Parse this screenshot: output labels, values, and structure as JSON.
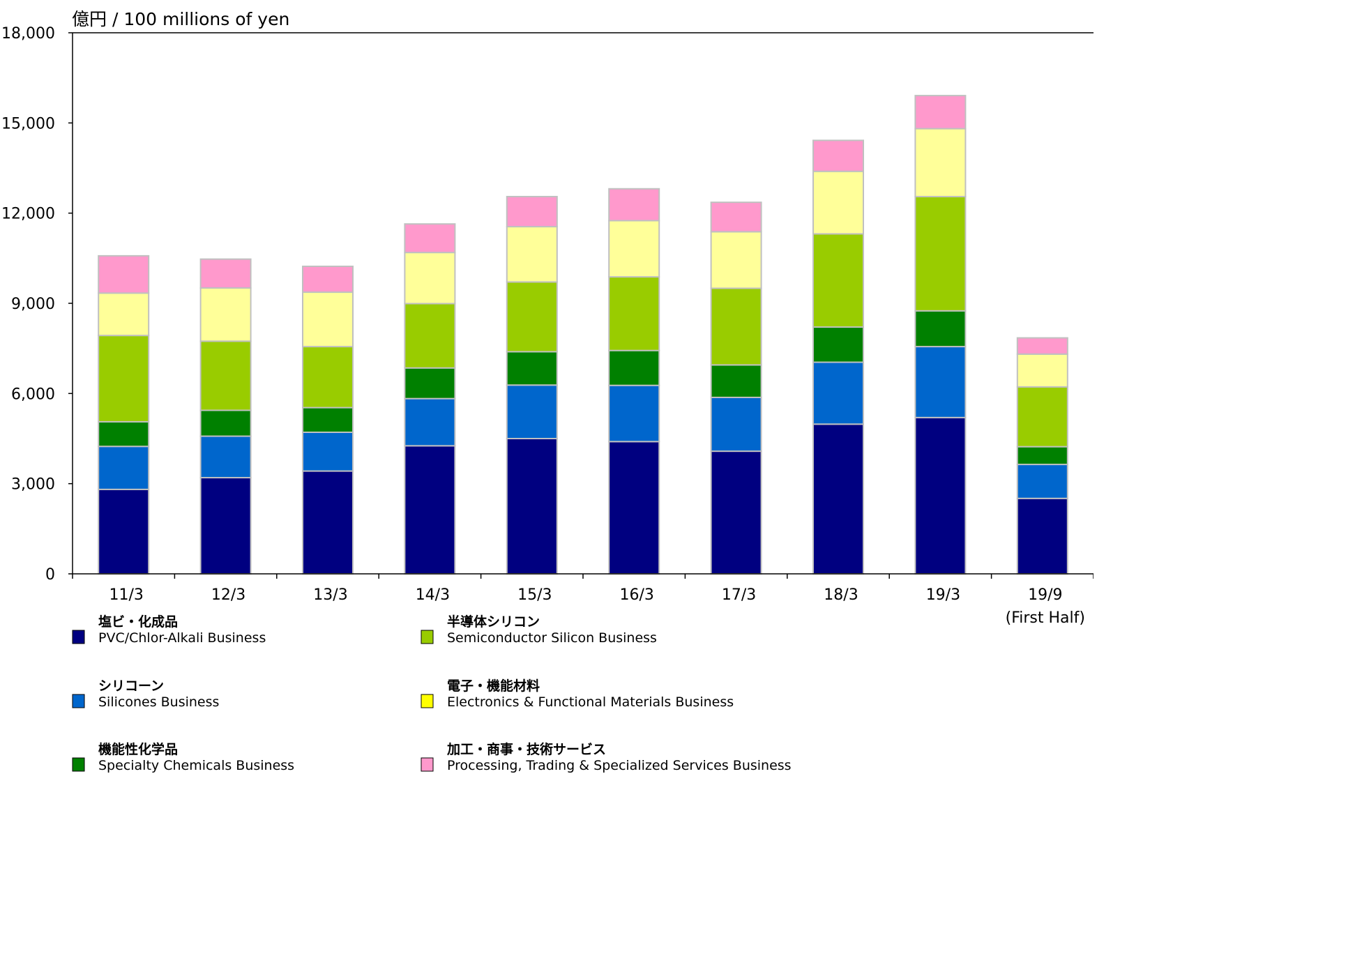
{
  "chart_data": {
    "type": "bar",
    "stacked": true,
    "unit_label": "億円 / 100 millions of yen",
    "categories": [
      "11/3",
      "12/3",
      "13/3",
      "14/3",
      "15/3",
      "16/3",
      "17/3",
      "18/3",
      "19/3",
      "19/9"
    ],
    "category_sublabels": [
      "",
      "",
      "",
      "",
      "",
      "",
      "",
      "",
      "",
      "(First Half)"
    ],
    "ylim": [
      0,
      18000
    ],
    "yticks": [
      "0",
      "3,000",
      "6,000",
      "9,000",
      "12,000",
      "15,000",
      "18,000"
    ],
    "ytick_values": [
      0,
      3000,
      6000,
      9000,
      12000,
      15000,
      18000
    ],
    "grid": false,
    "legend_position": "bottom",
    "series": [
      {
        "name_ja": "塩ビ・化成品",
        "name": "PVC/Chlor-Alkali Business",
        "color": "#000080",
        "values": [
          2810,
          3200,
          3420,
          4260,
          4500,
          4400,
          4080,
          4980,
          5200,
          2510
        ]
      },
      {
        "name_ja": "シリコーン",
        "name": "Silicones Business",
        "color": "#0066cc",
        "values": [
          1430,
          1380,
          1290,
          1570,
          1780,
          1870,
          1790,
          2060,
          2360,
          1130
        ]
      },
      {
        "name_ja": "機能性化学品",
        "name": "Specialty Chemicals Business",
        "color": "#008000",
        "values": [
          820,
          860,
          820,
          1020,
          1110,
          1160,
          1080,
          1170,
          1190,
          590
        ]
      },
      {
        "name_ja": "半導体シリコン",
        "name": "Semiconductor Silicon Business",
        "color": "#99cc00",
        "values": [
          2870,
          2300,
          2030,
          2140,
          2320,
          2450,
          2550,
          3100,
          3800,
          1990
        ]
      },
      {
        "name_ja": "電子・機能材料",
        "name": "Electronics & Functional Materials Business",
        "color": "#ffff99",
        "values": [
          1410,
          1770,
          1810,
          1700,
          1840,
          1870,
          1880,
          2080,
          2260,
          1090
        ]
      },
      {
        "name_ja": "加工・商事・技術サービス",
        "name": "Processing, Trading & Specialized Services Business",
        "color": "#ff99cc",
        "values": [
          1240,
          960,
          860,
          950,
          1000,
          1060,
          980,
          1030,
          1100,
          540
        ]
      }
    ],
    "legend_swatch_colors": [
      "#000080",
      "#0066cc",
      "#008000",
      "#99cc00",
      "#ffff00",
      "#ff99cc"
    ]
  }
}
